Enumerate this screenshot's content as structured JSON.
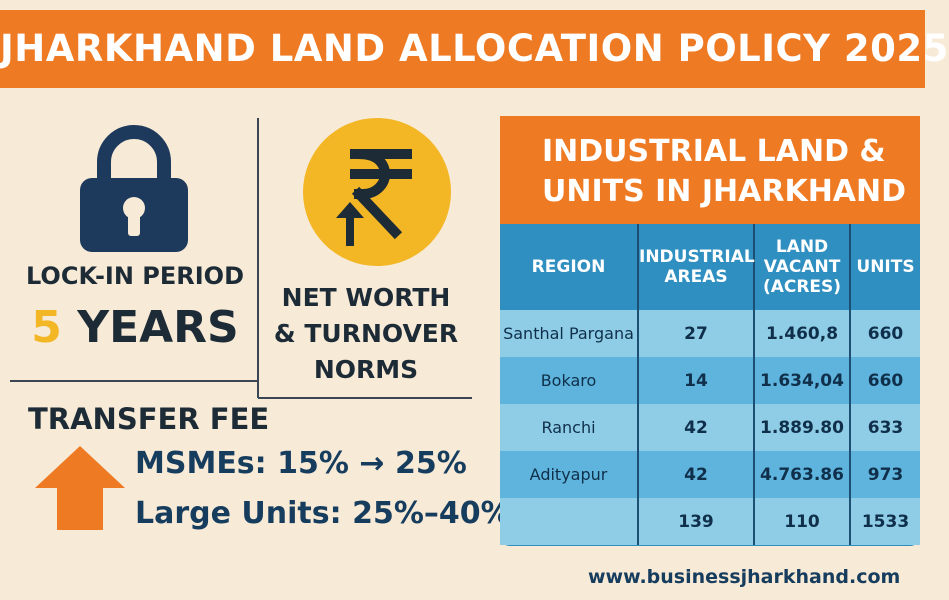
{
  "title": "JHARKHAND LAND ALLOCATION POLICY 2025",
  "lock_in": {
    "icon": "padlock-icon",
    "label": "LOCK-IN PERIOD",
    "value_number": "5",
    "value_unit": "YEARS"
  },
  "net_worth": {
    "icon": "rupee-up-icon",
    "lines": [
      "NET WORTH",
      "& TURNOVER",
      "NORMS"
    ]
  },
  "transfer_fee": {
    "icon": "up-arrow-icon",
    "title": "TRANSFER FEE",
    "msme_label": "MSMEs:",
    "msme_value": "15% → 25%",
    "large_label": "Large Units:",
    "large_value": "25%–40%"
  },
  "table": {
    "title_line1": "INDUSTRIAL LAND &",
    "title_line2": "UNITS IN JHARKHAND",
    "headers": [
      "REGION",
      "INDUSTRIAL AREAS",
      "LAND VACANT (ACRES)",
      "UNITS"
    ],
    "rows": [
      [
        "Santhal Pargana",
        "27",
        "1.460,8",
        "660"
      ],
      [
        "Bokaro",
        "14",
        "1.634,04",
        "660"
      ],
      [
        "Ranchi",
        "42",
        "1.889.80",
        "633"
      ],
      [
        "Adityapur",
        "42",
        "4.763.86",
        "973"
      ],
      [
        "",
        "139",
        "110",
        "1533"
      ]
    ]
  },
  "colors": {
    "orange": "#ef7a24",
    "navy": "#1d3a5c",
    "yellow": "#f3b625",
    "cream": "#f7ead6",
    "table_blue": "#2f8fbf",
    "row_light": "#8fcde7",
    "row_mid": "#5fb4dd"
  },
  "footer_url": "www.businessjharkhand.com"
}
